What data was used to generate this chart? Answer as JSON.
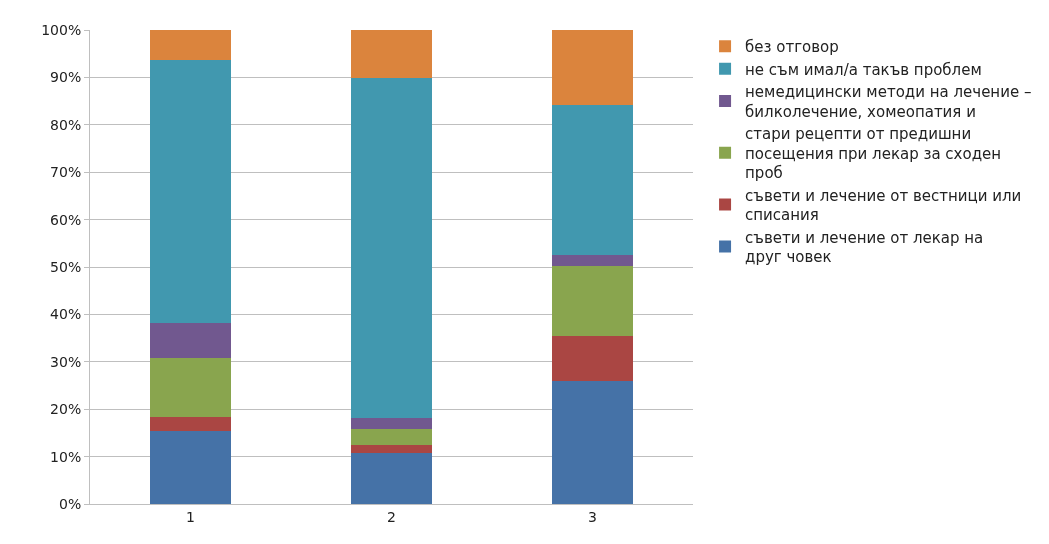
{
  "chart_data": {
    "type": "bar",
    "stacked": true,
    "categories": [
      "1",
      "2",
      "3"
    ],
    "series": [
      {
        "name": "съвети и лечение от лекар на друг човек",
        "color": "#4572a7",
        "values": [
          15.4,
          10.7,
          26.0
        ]
      },
      {
        "name": "съвети и лечение от вестници или списания",
        "color": "#aa4643",
        "values": [
          2.9,
          1.7,
          9.4
        ]
      },
      {
        "name": "стари рецепти от предишни посещения при лекар за сходен проб",
        "color": "#89a54e",
        "values": [
          12.6,
          3.4,
          14.9
        ]
      },
      {
        "name": "немедицински методи на лечение – билколечение, хомеопатия и",
        "color": "#71588f",
        "values": [
          7.3,
          2.3,
          2.2
        ]
      },
      {
        "name": "не съм имал/а такъв проблем",
        "color": "#4198af",
        "values": [
          55.4,
          71.7,
          31.7
        ]
      },
      {
        "name": "без отговор",
        "color": "#db843d",
        "values": [
          6.4,
          10.2,
          15.8
        ]
      }
    ],
    "ylim": [
      0,
      100
    ],
    "yticks": [
      {
        "value": 0,
        "label": "0%"
      },
      {
        "value": 10,
        "label": "10%"
      },
      {
        "value": 20,
        "label": "20%"
      },
      {
        "value": 30,
        "label": "30%"
      },
      {
        "value": 40,
        "label": "40%"
      },
      {
        "value": 50,
        "label": "50%"
      },
      {
        "value": 60,
        "label": "60%"
      },
      {
        "value": 70,
        "label": "70%"
      },
      {
        "value": 80,
        "label": "80%"
      },
      {
        "value": 90,
        "label": "90%"
      },
      {
        "value": 100,
        "label": "100%"
      }
    ],
    "grid": "y",
    "legend": "right"
  }
}
